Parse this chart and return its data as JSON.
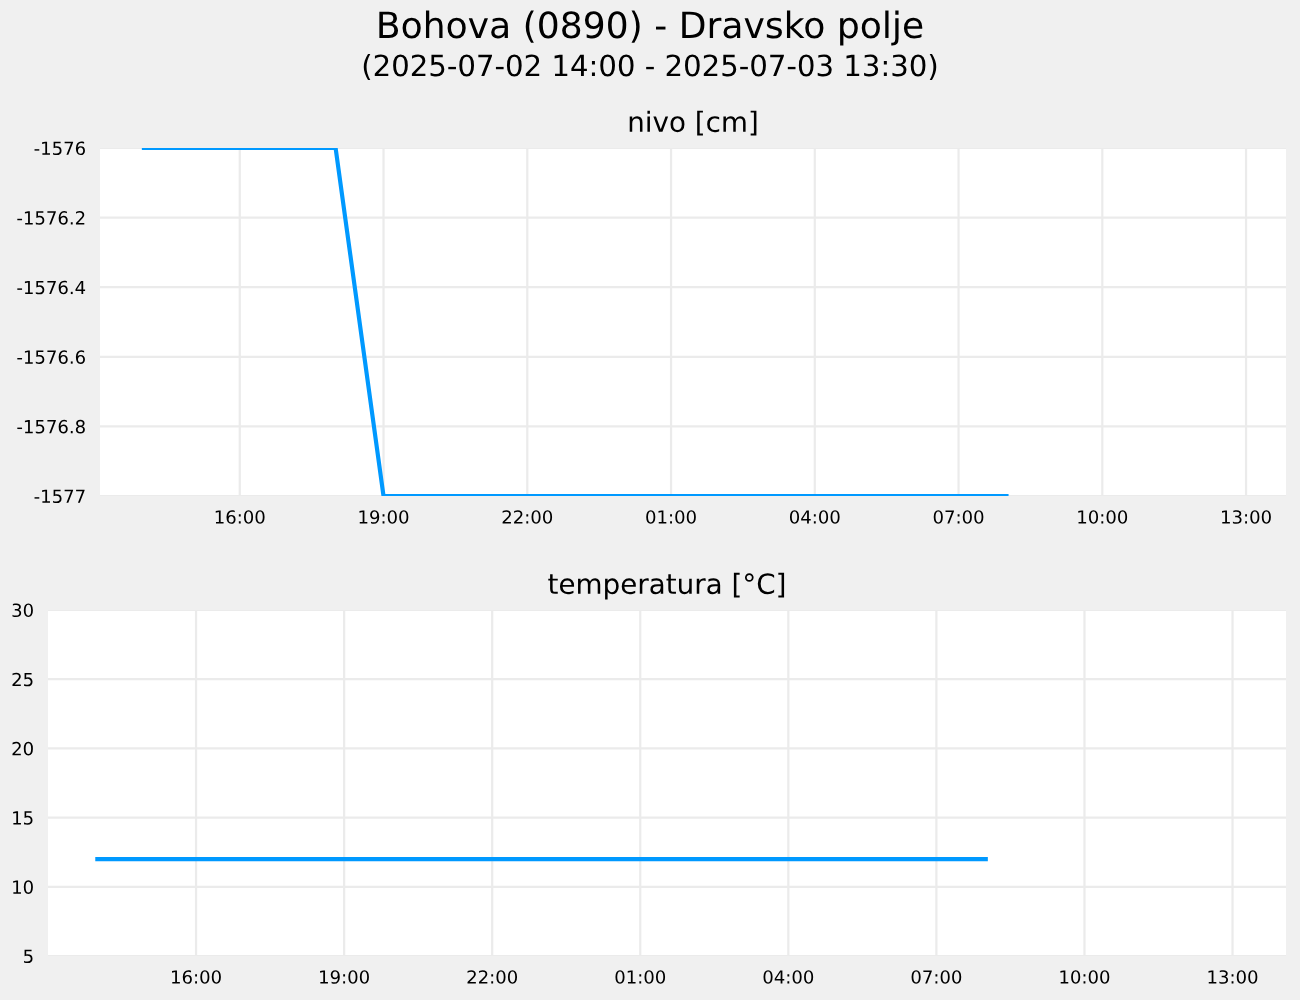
{
  "chart_data": [
    {
      "type": "line",
      "title": "Bohova (0890) - Dravsko polje",
      "subtitle": "(2025-07-02 14:00 - 2025-07-03 13:30)",
      "ylabel": "nivo [cm]",
      "x": [
        "2025-07-02T14:00",
        "2025-07-02T18:00",
        "2025-07-02T19:00",
        "2025-07-03T08:00"
      ],
      "series": [
        {
          "color": "#0099ff",
          "values": [
            -1576,
            -1576,
            -1577,
            -1577
          ]
        }
      ],
      "xlim": [
        "2025-07-02T13:05",
        "2025-07-03T13:50"
      ],
      "ylim": [
        -1577,
        -1576
      ],
      "yticks": [
        -1577,
        {
          "value": -1576.8,
          "label": "-1576.8"
        },
        {
          "value": -1576.6,
          "label": "-1576.6"
        },
        {
          "value": -1576.4,
          "label": "-1576.4"
        },
        {
          "value": -1576.2,
          "label": "-1576.2"
        },
        -1576
      ],
      "xticks": [
        {
          "value": "2025-07-02T16:00",
          "label": "16:00"
        },
        {
          "value": "2025-07-02T19:00",
          "label": "19:00"
        },
        {
          "value": "2025-07-02T22:00",
          "label": "22:00"
        },
        {
          "value": "2025-07-03T01:00",
          "label": "01:00"
        },
        {
          "value": "2025-07-03T04:00",
          "label": "04:00"
        },
        {
          "value": "2025-07-03T07:00",
          "label": "07:00"
        },
        {
          "value": "2025-07-03T10:00",
          "label": "10:00"
        },
        {
          "value": "2025-07-03T13:00",
          "label": "13:00"
        }
      ],
      "grid": true,
      "marker": "none",
      "line_style": "solid"
    },
    {
      "type": "line",
      "ylabel": "temperatura [°C]",
      "x": [
        "2025-07-02T14:00",
        "2025-07-03T08:00"
      ],
      "series": [
        {
          "color": "#0099ff",
          "values": [
            12,
            12
          ]
        }
      ],
      "xlim": [
        "2025-07-02T13:00",
        "2025-07-03T14:05"
      ],
      "ylim": [
        5,
        30
      ],
      "yticks": [
        5,
        10,
        15,
        20,
        25,
        30
      ],
      "xticks": [
        {
          "value": "2025-07-02T16:00",
          "label": "16:00"
        },
        {
          "value": "2025-07-02T19:00",
          "label": "19:00"
        },
        {
          "value": "2025-07-02T22:00",
          "label": "22:00"
        },
        {
          "value": "2025-07-03T01:00",
          "label": "01:00"
        },
        {
          "value": "2025-07-03T04:00",
          "label": "04:00"
        },
        {
          "value": "2025-07-03T07:00",
          "label": "07:00"
        },
        {
          "value": "2025-07-03T10:00",
          "label": "10:00"
        },
        {
          "value": "2025-07-03T13:00",
          "label": "13:00"
        }
      ],
      "grid": true,
      "marker": "none",
      "line_style": "solid"
    }
  ]
}
